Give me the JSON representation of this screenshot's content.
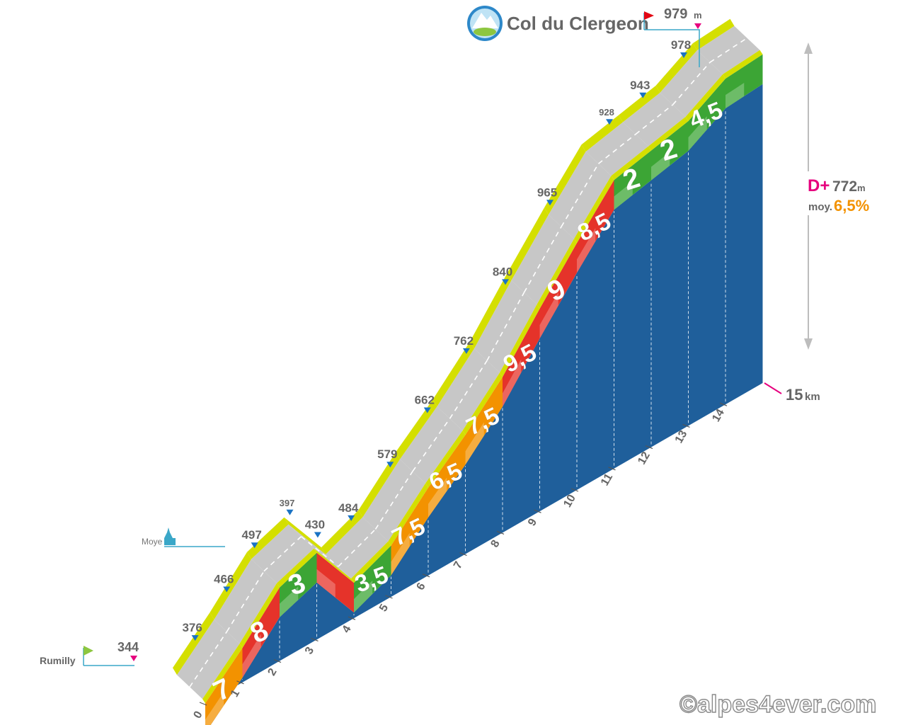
{
  "chart_data": {
    "type": "area",
    "title": "Col du Clergeon",
    "summit": {
      "altitude": "979",
      "unit": "m"
    },
    "start": {
      "name": "Rumilly",
      "altitude": "344"
    },
    "waypoint": {
      "name": "Moye",
      "altitude": "497"
    },
    "distance": {
      "value": "15",
      "unit": "km"
    },
    "elevation_gain": {
      "label": "D+",
      "value": "772",
      "unit": "m"
    },
    "average": {
      "label": "moy.",
      "value": "6,5%"
    },
    "km_ticks": [
      "0",
      "1",
      "2",
      "3",
      "4",
      "5",
      "6",
      "7",
      "8",
      "9",
      "10",
      "11",
      "12",
      "13",
      "14"
    ],
    "altitudes": [
      {
        "km": 0,
        "alt": 344,
        "label": "344"
      },
      {
        "km": 0.45,
        "alt": 376,
        "label": "376"
      },
      {
        "km": 1.3,
        "alt": 466,
        "label": "466"
      },
      {
        "km": 2.05,
        "alt": 497,
        "label": "497"
      },
      {
        "km": 3.0,
        "alt": 397,
        "label": "397"
      },
      {
        "km": 3.75,
        "alt": 430,
        "label": "430"
      },
      {
        "km": 4.65,
        "alt": 484,
        "label": "484"
      },
      {
        "km": 5.7,
        "alt": 579,
        "label": "579"
      },
      {
        "km": 6.7,
        "alt": 662,
        "label": "662"
      },
      {
        "km": 7.75,
        "alt": 762,
        "label": "762"
      },
      {
        "km": 8.8,
        "alt": 840,
        "label": "840"
      },
      {
        "km": 10.0,
        "alt": 965,
        "label": "965"
      },
      {
        "km": 11.6,
        "alt": 928,
        "label": "928"
      },
      {
        "km": 12.5,
        "alt": 943,
        "label": "943"
      },
      {
        "km": 13.6,
        "alt": 978,
        "label": "978"
      }
    ],
    "segments": [
      {
        "from": 0,
        "to": 1,
        "grade": "7",
        "color": "#f39200"
      },
      {
        "from": 1,
        "to": 2,
        "grade": "8",
        "color": "#e5332a"
      },
      {
        "from": 2,
        "to": 3,
        "grade": "3",
        "color": "#3ca535"
      },
      {
        "from": 3,
        "to": 4,
        "grade": "",
        "color": "#e5332a"
      },
      {
        "from": 4,
        "to": 5,
        "grade": "3,5",
        "color": "#3ca535"
      },
      {
        "from": 5,
        "to": 6,
        "grade": "7,5",
        "color": "#f39200"
      },
      {
        "from": 6,
        "to": 7,
        "grade": "6,5",
        "color": "#f39200"
      },
      {
        "from": 7,
        "to": 8,
        "grade": "7,5",
        "color": "#f39200"
      },
      {
        "from": 8,
        "to": 9,
        "grade": "9,5",
        "color": "#e5332a"
      },
      {
        "from": 9,
        "to": 10,
        "grade": "9",
        "color": "#e5332a"
      },
      {
        "from": 10,
        "to": 11,
        "grade": "8,5",
        "color": "#e5332a"
      },
      {
        "from": 11,
        "to": 12,
        "grade": "2",
        "color": "#3ca535"
      },
      {
        "from": 12,
        "to": 13,
        "grade": "2",
        "color": "#3ca535"
      },
      {
        "from": 13,
        "to": 14,
        "grade": "4,5",
        "color": "#3ca535"
      },
      {
        "from": 14,
        "to": 15,
        "grade": "",
        "color": "#3ca535"
      }
    ],
    "colors": {
      "side": "#1f5f9b",
      "road": "#c7c7c7",
      "curb": "#d4df00",
      "accent": "#e6007e",
      "label": "#666666",
      "marker": "#1a73c4"
    }
  },
  "copyright": "©alpes4ever.com"
}
